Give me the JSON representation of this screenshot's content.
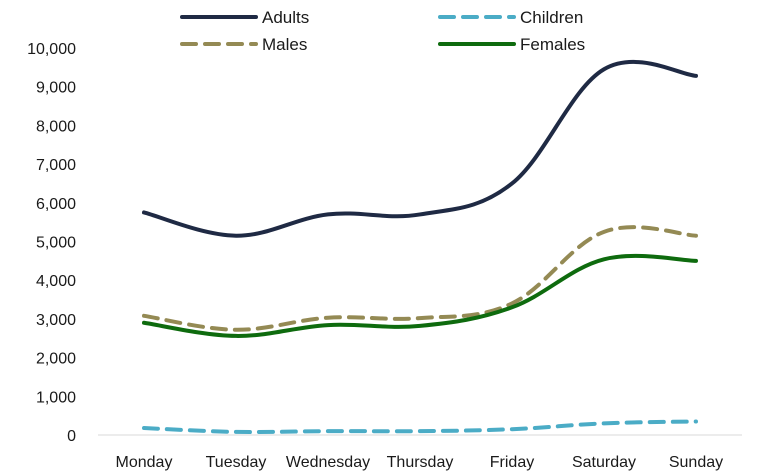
{
  "chart_data": {
    "type": "line",
    "categories": [
      "Monday",
      "Tuesday",
      "Wednesday",
      "Thursday",
      "Friday",
      "Saturday",
      "Sunday"
    ],
    "ylim": [
      0,
      10000
    ],
    "yticks": [
      0,
      1000,
      2000,
      3000,
      4000,
      5000,
      6000,
      7000,
      8000,
      9000,
      10000
    ],
    "ytick_labels": [
      "0",
      "1,000",
      "2,000",
      "3,000",
      "4,000",
      "5,000",
      "6,000",
      "7,000",
      "8,000",
      "9,000",
      "10,000"
    ],
    "grid": false,
    "legend_position": "top",
    "series": [
      {
        "name": "Adults",
        "values": [
          5750,
          5150,
          5700,
          5700,
          6500,
          9450,
          9280
        ],
        "color": "#1f2a44",
        "style": "solid"
      },
      {
        "name": "Children",
        "values": [
          180,
          80,
          100,
          100,
          150,
          300,
          350
        ],
        "color": "#4bacc6",
        "style": "dashed"
      },
      {
        "name": "Males",
        "values": [
          3080,
          2720,
          3030,
          3020,
          3400,
          5250,
          5150
        ],
        "color": "#948a54",
        "style": "dashed"
      },
      {
        "name": "Females",
        "values": [
          2900,
          2560,
          2840,
          2820,
          3300,
          4540,
          4500
        ],
        "color": "#0e6b0e",
        "style": "solid"
      }
    ]
  }
}
